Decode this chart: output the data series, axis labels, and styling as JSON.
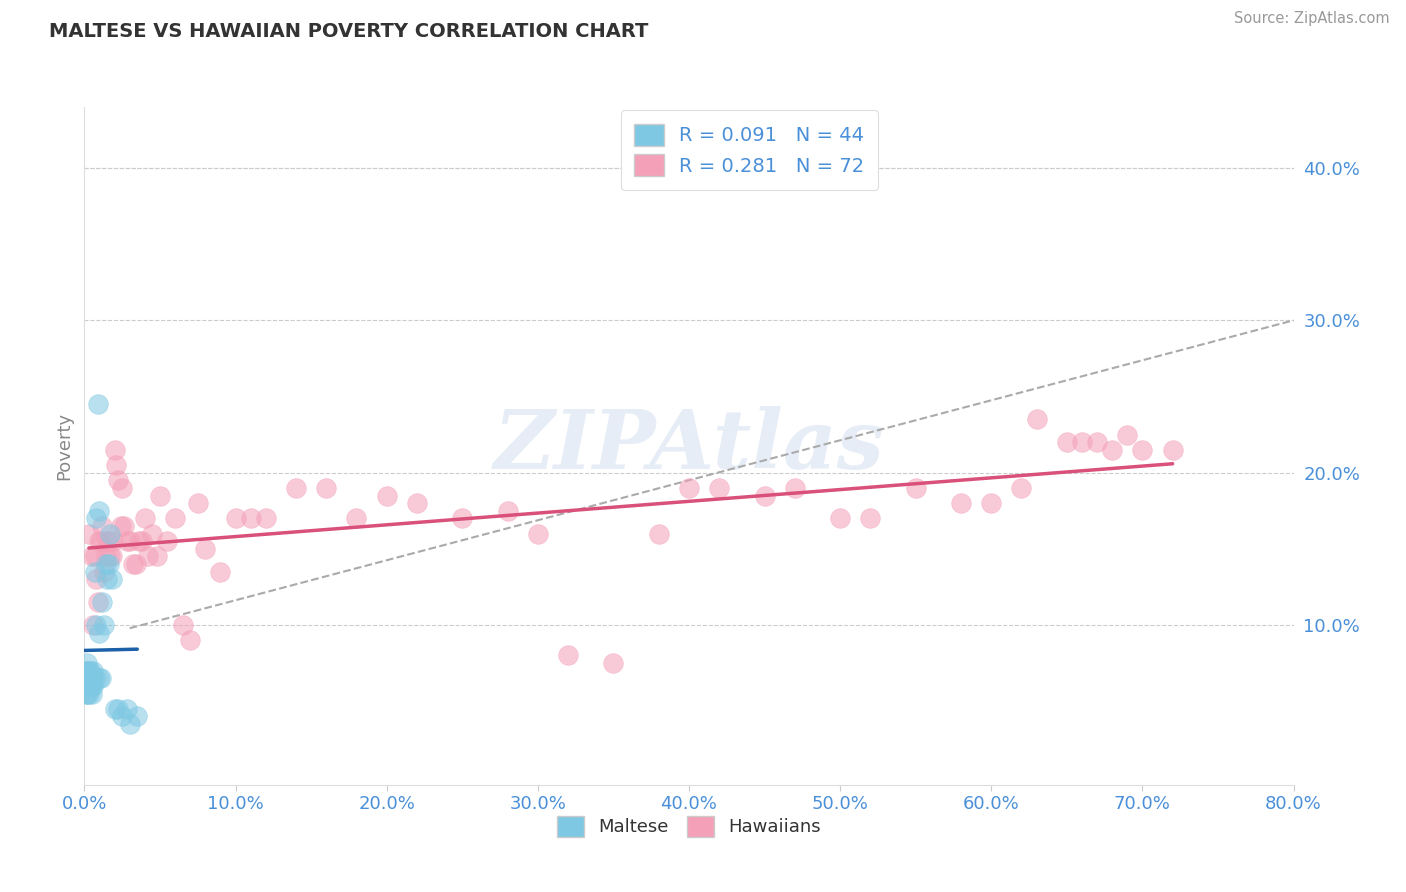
{
  "title": "MALTESE VS HAWAIIAN POVERTY CORRELATION CHART",
  "source": "Source: ZipAtlas.com",
  "tick_color": "#4a90d9",
  "ylabel": "Poverty",
  "watermark": "ZIPAtlas",
  "legend1_r": "0.091",
  "legend1_n": "44",
  "legend2_r": "0.281",
  "legend2_n": "72",
  "blue_color": "#7ec8e3",
  "pink_color": "#f4a0b8",
  "blue_line_color": "#1a5fa8",
  "pink_line_color": "#d9507a",
  "grid_color": "#cccccc",
  "xlim": [
    0.0,
    0.8
  ],
  "ylim": [
    -0.005,
    0.44
  ],
  "xtick_labels": [
    "0.0%",
    "10.0%",
    "20.0%",
    "30.0%",
    "40.0%",
    "50.0%",
    "60.0%",
    "70.0%",
    "80.0%"
  ],
  "xtick_vals": [
    0.0,
    0.1,
    0.2,
    0.3,
    0.4,
    0.5,
    0.6,
    0.7,
    0.8
  ],
  "ytick_labels_right": [
    "10.0%",
    "20.0%",
    "30.0%",
    "40.0%"
  ],
  "ytick_vals_right": [
    0.1,
    0.2,
    0.3,
    0.4
  ],
  "blue_x": [
    0.001,
    0.001,
    0.001,
    0.001,
    0.002,
    0.002,
    0.002,
    0.002,
    0.002,
    0.003,
    0.003,
    0.003,
    0.003,
    0.004,
    0.004,
    0.004,
    0.005,
    0.005,
    0.005,
    0.006,
    0.006,
    0.006,
    0.007,
    0.007,
    0.008,
    0.008,
    0.009,
    0.01,
    0.01,
    0.01,
    0.011,
    0.012,
    0.013,
    0.014,
    0.015,
    0.016,
    0.017,
    0.018,
    0.02,
    0.022,
    0.025,
    0.028,
    0.03,
    0.035
  ],
  "blue_y": [
    0.055,
    0.06,
    0.065,
    0.07,
    0.055,
    0.06,
    0.065,
    0.07,
    0.075,
    0.055,
    0.06,
    0.065,
    0.07,
    0.06,
    0.065,
    0.07,
    0.055,
    0.06,
    0.065,
    0.06,
    0.065,
    0.07,
    0.065,
    0.135,
    0.1,
    0.17,
    0.245,
    0.065,
    0.095,
    0.175,
    0.065,
    0.115,
    0.1,
    0.14,
    0.13,
    0.14,
    0.16,
    0.13,
    0.045,
    0.045,
    0.04,
    0.045,
    0.035,
    0.04
  ],
  "pink_x": [
    0.003,
    0.005,
    0.006,
    0.007,
    0.008,
    0.009,
    0.01,
    0.011,
    0.012,
    0.013,
    0.014,
    0.015,
    0.016,
    0.017,
    0.018,
    0.019,
    0.02,
    0.021,
    0.022,
    0.024,
    0.025,
    0.026,
    0.028,
    0.03,
    0.032,
    0.034,
    0.036,
    0.038,
    0.04,
    0.042,
    0.045,
    0.048,
    0.05,
    0.055,
    0.06,
    0.065,
    0.07,
    0.075,
    0.08,
    0.09,
    0.1,
    0.11,
    0.12,
    0.14,
    0.16,
    0.18,
    0.2,
    0.22,
    0.25,
    0.28,
    0.3,
    0.32,
    0.35,
    0.38,
    0.4,
    0.42,
    0.45,
    0.47,
    0.5,
    0.52,
    0.55,
    0.58,
    0.6,
    0.62,
    0.63,
    0.65,
    0.66,
    0.67,
    0.68,
    0.69,
    0.7,
    0.72
  ],
  "pink_y": [
    0.16,
    0.145,
    0.1,
    0.145,
    0.13,
    0.115,
    0.155,
    0.155,
    0.165,
    0.135,
    0.145,
    0.155,
    0.155,
    0.145,
    0.145,
    0.155,
    0.215,
    0.205,
    0.195,
    0.165,
    0.19,
    0.165,
    0.155,
    0.155,
    0.14,
    0.14,
    0.155,
    0.155,
    0.17,
    0.145,
    0.16,
    0.145,
    0.185,
    0.155,
    0.17,
    0.1,
    0.09,
    0.18,
    0.15,
    0.135,
    0.17,
    0.17,
    0.17,
    0.19,
    0.19,
    0.17,
    0.185,
    0.18,
    0.17,
    0.175,
    0.16,
    0.08,
    0.075,
    0.16,
    0.19,
    0.19,
    0.185,
    0.19,
    0.17,
    0.17,
    0.19,
    0.18,
    0.18,
    0.19,
    0.235,
    0.22,
    0.22,
    0.22,
    0.215,
    0.225,
    0.215,
    0.215
  ]
}
